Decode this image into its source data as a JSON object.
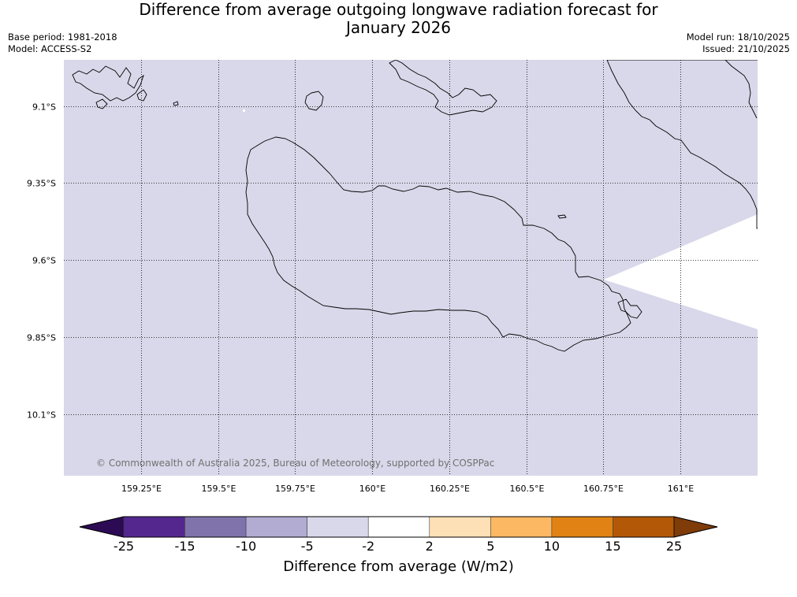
{
  "header": {
    "title_line1": "Difference from average outgoing longwave radiation forecast for",
    "title_line2": "January 2026",
    "base_period": "Base period: 1981-2018",
    "model": "Model: ACCESS-S2",
    "model_run": "Model run: 18/10/2025",
    "issued": "Issued: 21/10/2025"
  },
  "map": {
    "lon_range": [
      159.0,
      161.25
    ],
    "lat_range": [
      -10.3,
      -8.95
    ],
    "background_color": "#d8d8ea",
    "missing_color": "#ffffff",
    "lon_ticks": [
      {
        "value": 159.25,
        "label": "159.25°E"
      },
      {
        "value": 159.5,
        "label": "159.5°E"
      },
      {
        "value": 159.75,
        "label": "159.75°E"
      },
      {
        "value": 160.0,
        "label": "160°E"
      },
      {
        "value": 160.25,
        "label": "160.25°E"
      },
      {
        "value": 160.5,
        "label": "160.5°E"
      },
      {
        "value": 160.75,
        "label": "160.75°E"
      },
      {
        "value": 161.0,
        "label": "161°E"
      }
    ],
    "lat_ticks": [
      {
        "value": -9.1,
        "label": "9.1°S"
      },
      {
        "value": -9.35,
        "label": "9.35°S"
      },
      {
        "value": -9.6,
        "label": "9.6°S"
      },
      {
        "value": -9.85,
        "label": "9.85°S"
      },
      {
        "value": -10.1,
        "label": "10.1°S"
      }
    ],
    "copyright": "© Commonwealth of Australia 2025, Bureau of Meteorology, supported by COSPPac"
  },
  "colorbar": {
    "title": "Difference from average (W/m2)",
    "tick_labels": [
      "-25",
      "-15",
      "-10",
      "-5",
      "-2",
      "2",
      "5",
      "10",
      "15",
      "25"
    ],
    "segment_colors": [
      "#2d0b54",
      "#54278f",
      "#8073ac",
      "#b2abd2",
      "#d8d8ea",
      "#ffffff",
      "#fee0b6",
      "#fdb863",
      "#e08214",
      "#b35806",
      "#7f3b08"
    ]
  }
}
